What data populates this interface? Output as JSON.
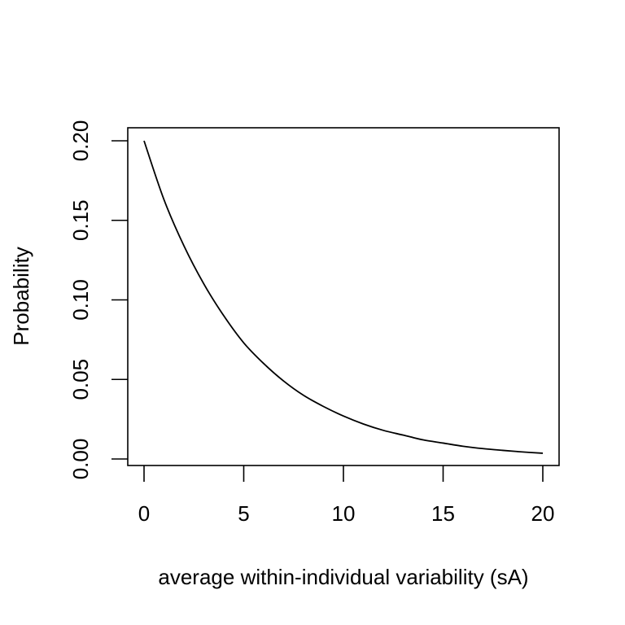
{
  "chart_data": {
    "type": "line",
    "title": "",
    "xlabel": "average within-individual variability (sA)",
    "ylabel": "Probability",
    "xlim": [
      0,
      20
    ],
    "ylim": [
      0,
      0.2
    ],
    "xticks": [
      0,
      5,
      10,
      15,
      20
    ],
    "xtick_labels": [
      "0",
      "5",
      "10",
      "15",
      "20"
    ],
    "yticks": [
      0,
      0.05,
      0.1,
      0.15,
      0.2
    ],
    "ytick_labels": [
      "0.00",
      "0.05",
      "0.10",
      "0.15",
      "0.20"
    ],
    "grid": false,
    "legend": "none",
    "series": [
      {
        "name": "probability",
        "color": "#000000",
        "x": [
          0,
          1,
          2,
          3,
          4,
          5,
          6,
          7,
          8,
          9,
          10,
          11,
          12,
          13,
          14,
          15,
          16,
          17,
          18,
          19,
          20
        ],
        "y": [
          0.2,
          0.163,
          0.134,
          0.11,
          0.09,
          0.073,
          0.06,
          0.049,
          0.04,
          0.033,
          0.027,
          0.022,
          0.018,
          0.015,
          0.012,
          0.01,
          0.008,
          0.0065,
          0.0054,
          0.0044,
          0.0036
        ]
      }
    ]
  }
}
